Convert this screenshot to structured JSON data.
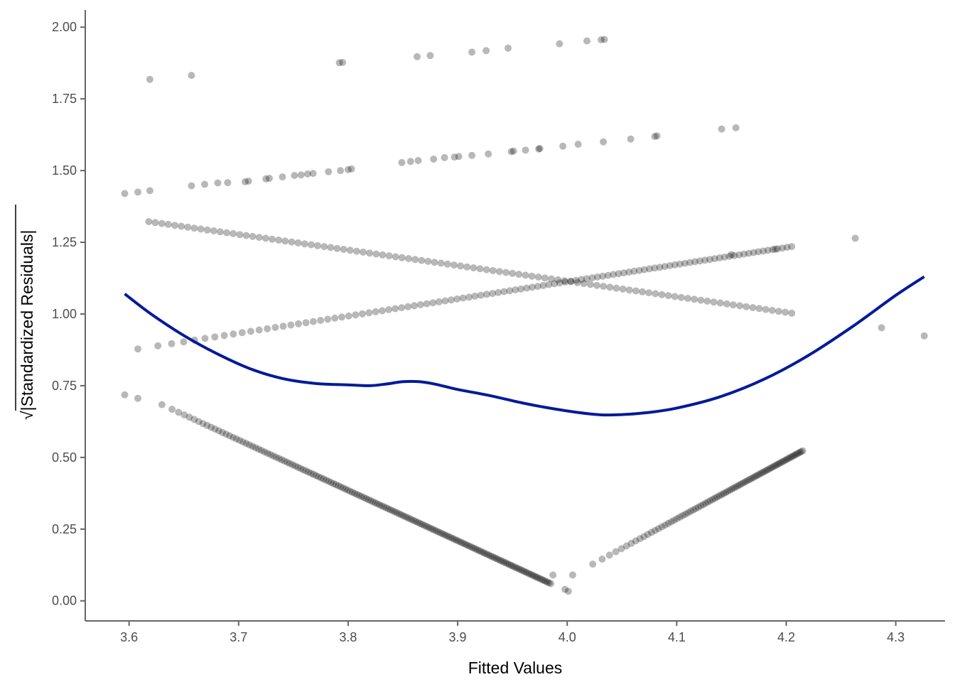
{
  "chart_data": {
    "type": "scatter",
    "title": "",
    "xlabel": "Fitted Values",
    "ylabel": "|Standardized Residuals|",
    "ylabel_prefix": "√",
    "xlim": [
      3.56,
      4.345
    ],
    "ylim": [
      -0.07,
      2.06
    ],
    "x_ticks": [
      3.6,
      3.7,
      3.8,
      3.9,
      4.0,
      4.1,
      4.2,
      4.3
    ],
    "x_tick_labels": [
      "3.6",
      "3.7",
      "3.8",
      "3.9",
      "4.0",
      "4.1",
      "4.2",
      "4.3"
    ],
    "y_ticks": [
      0.0,
      0.25,
      0.5,
      0.75,
      1.0,
      1.25,
      1.5,
      1.75,
      2.0
    ],
    "y_tick_labels": [
      "0.00",
      "0.25",
      "0.50",
      "0.75",
      "1.00",
      "1.25",
      "1.50",
      "1.75",
      "2.00"
    ],
    "grid": false,
    "point_color": "#000000",
    "point_opacity": 0.28,
    "smooth_color": "#001a99",
    "bands": [
      {
        "x_start": 3.63,
        "y_start": 0.684,
        "x_end": 3.985,
        "y_end": 0.06,
        "exponent": 0.72,
        "count": 160
      },
      {
        "x_start": 4.005,
        "y_start": 0.09,
        "x_end": 4.215,
        "y_end": 0.523,
        "exponent": 0.55,
        "count": 85
      },
      {
        "x_start": 3.618,
        "y_start": 1.322,
        "x_end": 4.205,
        "y_end": 1.003,
        "exponent": 1.0,
        "count": 100
      },
      {
        "x_start": 3.608,
        "y_start": 0.878,
        "x_end": 4.205,
        "y_end": 1.235,
        "exponent": 0.75,
        "count": 105
      }
    ],
    "points": [
      {
        "x": 3.596,
        "y": 0.718
      },
      {
        "x": 3.608,
        "y": 0.706
      },
      {
        "x": 3.596,
        "y": 1.42
      },
      {
        "x": 3.608,
        "y": 1.425
      },
      {
        "x": 3.619,
        "y": 1.43
      },
      {
        "x": 3.657,
        "y": 1.447
      },
      {
        "x": 3.669,
        "y": 1.452
      },
      {
        "x": 3.681,
        "y": 1.457
      },
      {
        "x": 3.69,
        "y": 1.458
      },
      {
        "x": 3.706,
        "y": 1.461
      },
      {
        "x": 3.709,
        "y": 1.463
      },
      {
        "x": 3.725,
        "y": 1.471
      },
      {
        "x": 3.728,
        "y": 1.473
      },
      {
        "x": 3.74,
        "y": 1.478
      },
      {
        "x": 3.751,
        "y": 1.483
      },
      {
        "x": 3.757,
        "y": 1.485
      },
      {
        "x": 3.763,
        "y": 1.488
      },
      {
        "x": 3.768,
        "y": 1.49
      },
      {
        "x": 3.782,
        "y": 1.496
      },
      {
        "x": 3.793,
        "y": 1.5
      },
      {
        "x": 3.8,
        "y": 1.503
      },
      {
        "x": 3.803,
        "y": 1.506
      },
      {
        "x": 3.849,
        "y": 1.528
      },
      {
        "x": 3.857,
        "y": 1.532
      },
      {
        "x": 3.864,
        "y": 1.535
      },
      {
        "x": 3.878,
        "y": 1.54
      },
      {
        "x": 3.888,
        "y": 1.545
      },
      {
        "x": 3.897,
        "y": 1.547
      },
      {
        "x": 3.901,
        "y": 1.549
      },
      {
        "x": 3.913,
        "y": 1.553
      },
      {
        "x": 3.928,
        "y": 1.558
      },
      {
        "x": 3.949,
        "y": 1.566
      },
      {
        "x": 3.951,
        "y": 1.568
      },
      {
        "x": 3.962,
        "y": 1.571
      },
      {
        "x": 3.974,
        "y": 1.575
      },
      {
        "x": 3.975,
        "y": 1.577
      },
      {
        "x": 3.996,
        "y": 1.585
      },
      {
        "x": 4.01,
        "y": 1.592
      },
      {
        "x": 4.033,
        "y": 1.6
      },
      {
        "x": 4.058,
        "y": 1.61
      },
      {
        "x": 4.08,
        "y": 1.619
      },
      {
        "x": 4.082,
        "y": 1.621
      },
      {
        "x": 4.141,
        "y": 1.645
      },
      {
        "x": 4.154,
        "y": 1.649
      },
      {
        "x": 3.619,
        "y": 1.818
      },
      {
        "x": 3.657,
        "y": 1.832
      },
      {
        "x": 3.792,
        "y": 1.876
      },
      {
        "x": 3.795,
        "y": 1.877
      },
      {
        "x": 3.863,
        "y": 1.897
      },
      {
        "x": 3.875,
        "y": 1.901
      },
      {
        "x": 3.913,
        "y": 1.913
      },
      {
        "x": 3.926,
        "y": 1.918
      },
      {
        "x": 3.946,
        "y": 1.927
      },
      {
        "x": 3.993,
        "y": 1.942
      },
      {
        "x": 4.018,
        "y": 1.952
      },
      {
        "x": 4.031,
        "y": 1.956
      },
      {
        "x": 4.034,
        "y": 1.957
      },
      {
        "x": 3.987,
        "y": 0.09
      },
      {
        "x": 3.998,
        "y": 0.04
      },
      {
        "x": 4.001,
        "y": 0.033
      },
      {
        "x": 4.15,
        "y": 1.207
      },
      {
        "x": 4.19,
        "y": 1.226
      },
      {
        "x": 4.263,
        "y": 1.264
      },
      {
        "x": 4.287,
        "y": 0.952
      },
      {
        "x": 4.326,
        "y": 0.924
      }
    ],
    "smooth_line": [
      [
        3.596,
        1.07
      ],
      [
        3.62,
        1.0
      ],
      [
        3.65,
        0.925
      ],
      [
        3.68,
        0.862
      ],
      [
        3.71,
        0.81
      ],
      [
        3.74,
        0.775
      ],
      [
        3.77,
        0.758
      ],
      [
        3.8,
        0.753
      ],
      [
        3.82,
        0.75
      ],
      [
        3.835,
        0.756
      ],
      [
        3.85,
        0.764
      ],
      [
        3.865,
        0.764
      ],
      [
        3.88,
        0.755
      ],
      [
        3.9,
        0.737
      ],
      [
        3.93,
        0.715
      ],
      [
        3.96,
        0.689
      ],
      [
        3.99,
        0.668
      ],
      [
        4.02,
        0.652
      ],
      [
        4.04,
        0.648
      ],
      [
        4.07,
        0.655
      ],
      [
        4.1,
        0.672
      ],
      [
        4.14,
        0.712
      ],
      [
        4.18,
        0.773
      ],
      [
        4.22,
        0.855
      ],
      [
        4.26,
        0.955
      ],
      [
        4.3,
        1.065
      ],
      [
        4.326,
        1.13
      ]
    ]
  }
}
